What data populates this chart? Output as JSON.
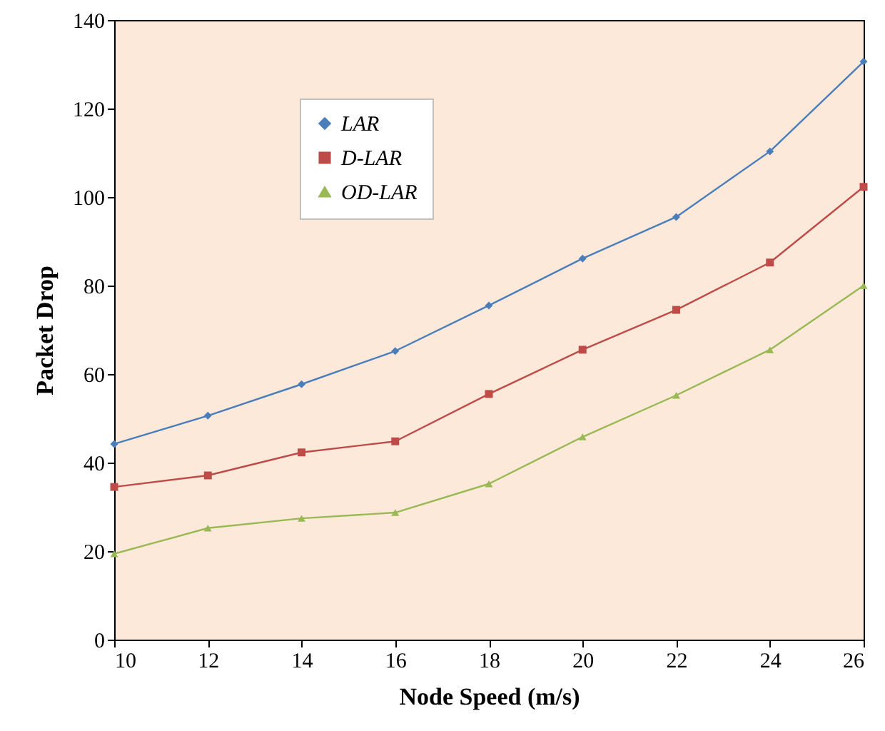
{
  "chart_data": {
    "type": "line",
    "xlabel": "Node Speed (m/s)",
    "ylabel": "Packet Drop",
    "x": [
      10,
      12,
      14,
      16,
      18,
      20,
      22,
      24,
      26
    ],
    "series": [
      {
        "name": "LAR",
        "color": "#4a7ebb",
        "marker": "diamond",
        "values": [
          44.2,
          50.6,
          57.7,
          65.2,
          75.5,
          86.1,
          95.5,
          110.3,
          130.6
        ]
      },
      {
        "name": "D-LAR",
        "color": "#be4b48",
        "marker": "square",
        "values": [
          34.5,
          37.1,
          42.3,
          44.8,
          55.5,
          65.5,
          74.5,
          85.2,
          102.3
        ]
      },
      {
        "name": "OD-LAR",
        "color": "#98b954",
        "marker": "triangle",
        "values": [
          19.4,
          25.2,
          27.4,
          28.7,
          35.2,
          45.8,
          55.2,
          65.5,
          80.0
        ]
      }
    ],
    "xlim": [
      10,
      26
    ],
    "xticks": [
      10,
      12,
      14,
      16,
      18,
      20,
      22,
      24,
      26
    ],
    "ylim": [
      0,
      140
    ],
    "yticks": [
      0,
      20,
      40,
      60,
      80,
      100,
      120,
      140
    ],
    "grid": false,
    "legend": "top left",
    "line_style": "solid"
  }
}
